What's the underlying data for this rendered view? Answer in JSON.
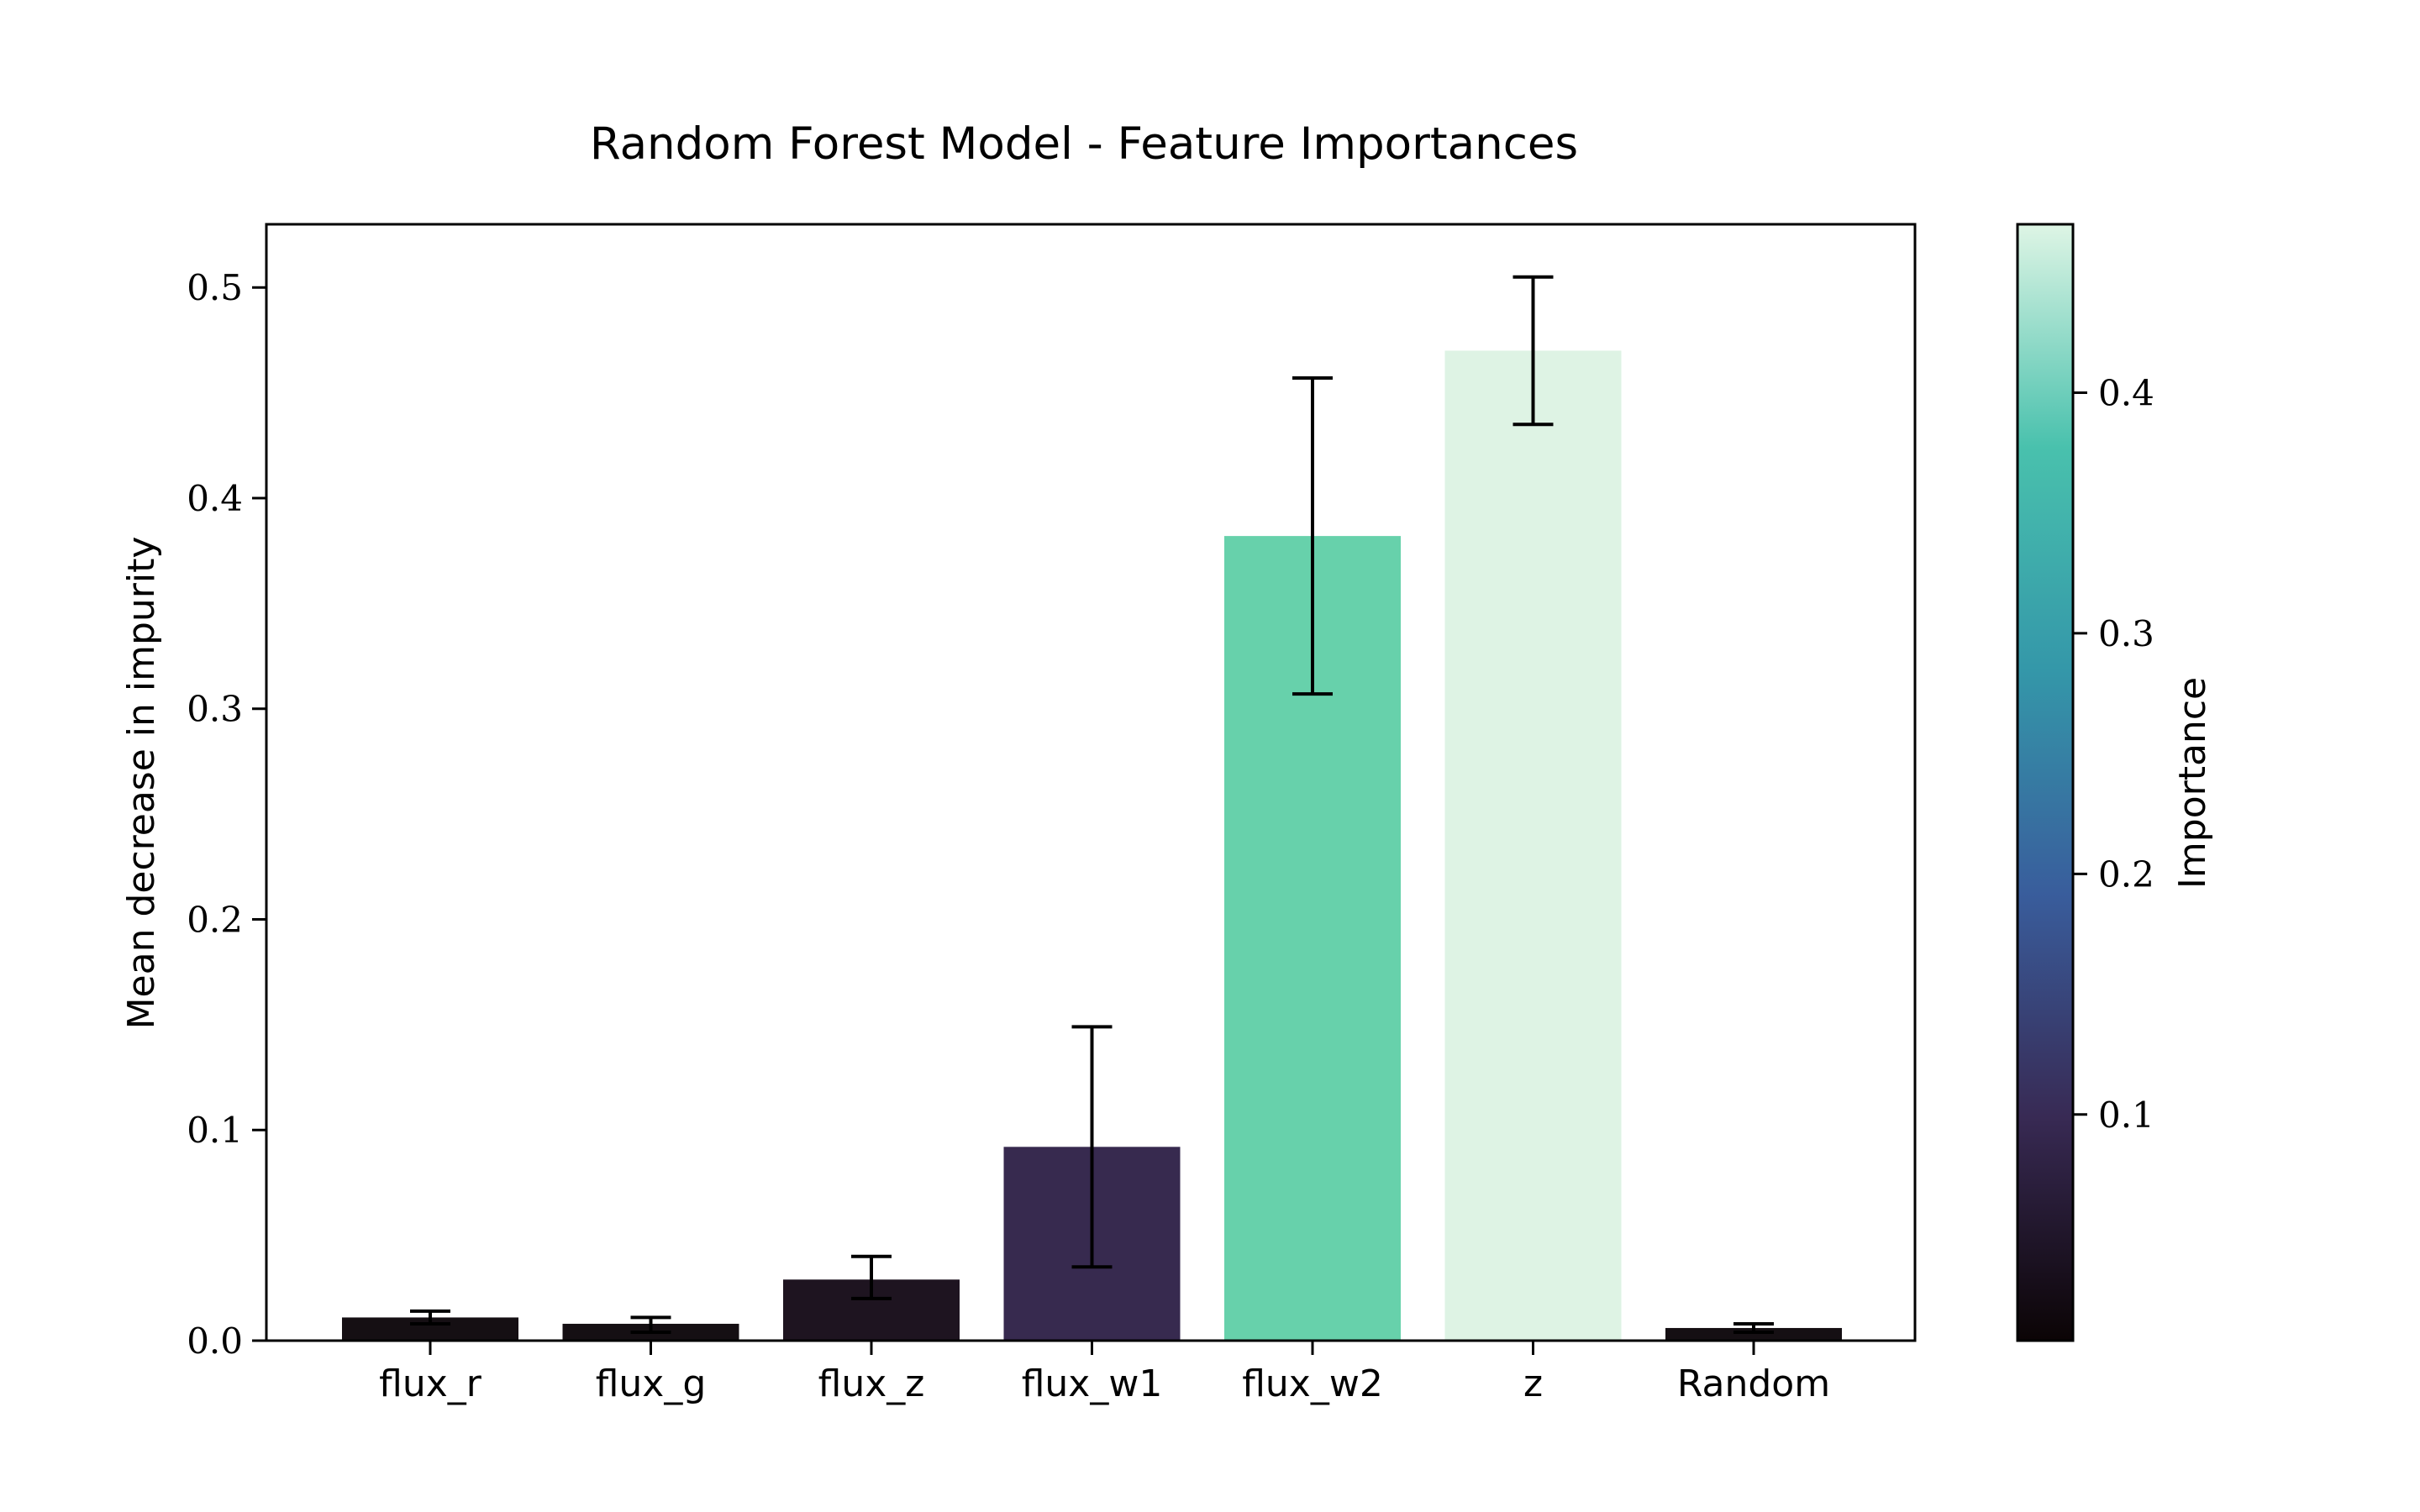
{
  "chart_data": {
    "type": "bar",
    "title": "Random Forest Model - Feature Importances",
    "xlabel": "",
    "ylabel": "Mean decrease in impurity",
    "categories": [
      "flux_r",
      "flux_g",
      "flux_z",
      "flux_w1",
      "flux_w2",
      "z",
      "Random"
    ],
    "values": [
      0.011,
      0.008,
      0.029,
      0.092,
      0.382,
      0.47,
      0.006
    ],
    "error_low": [
      0.008,
      0.004,
      0.02,
      0.035,
      0.307,
      0.435,
      0.004
    ],
    "error_high": [
      0.014,
      0.011,
      0.04,
      0.149,
      0.457,
      0.505,
      0.008
    ],
    "bar_colors": [
      "#150f13",
      "#150f13",
      "#1e1420",
      "#372a4f",
      "#67d1ab",
      "#def3e4",
      "#150f13"
    ],
    "ylim": [
      0,
      0.53
    ],
    "yticks": [
      0.0,
      0.1,
      0.2,
      0.3,
      0.4,
      0.5
    ],
    "ytick_labels": [
      "0.0",
      "0.1",
      "0.2",
      "0.3",
      "0.4",
      "0.5"
    ],
    "grid": false,
    "colorbar": {
      "label": "Importance",
      "range": [
        0.006,
        0.47
      ],
      "ticks": [
        0.1,
        0.2,
        0.3,
        0.4
      ],
      "tick_labels": [
        "0.1",
        "0.2",
        "0.3",
        "0.4"
      ],
      "colormap": "mako",
      "stops": [
        "#0b0405",
        "#382a54",
        "#395d9c",
        "#3497a9",
        "#49c1ad",
        "#def5e5"
      ]
    }
  }
}
